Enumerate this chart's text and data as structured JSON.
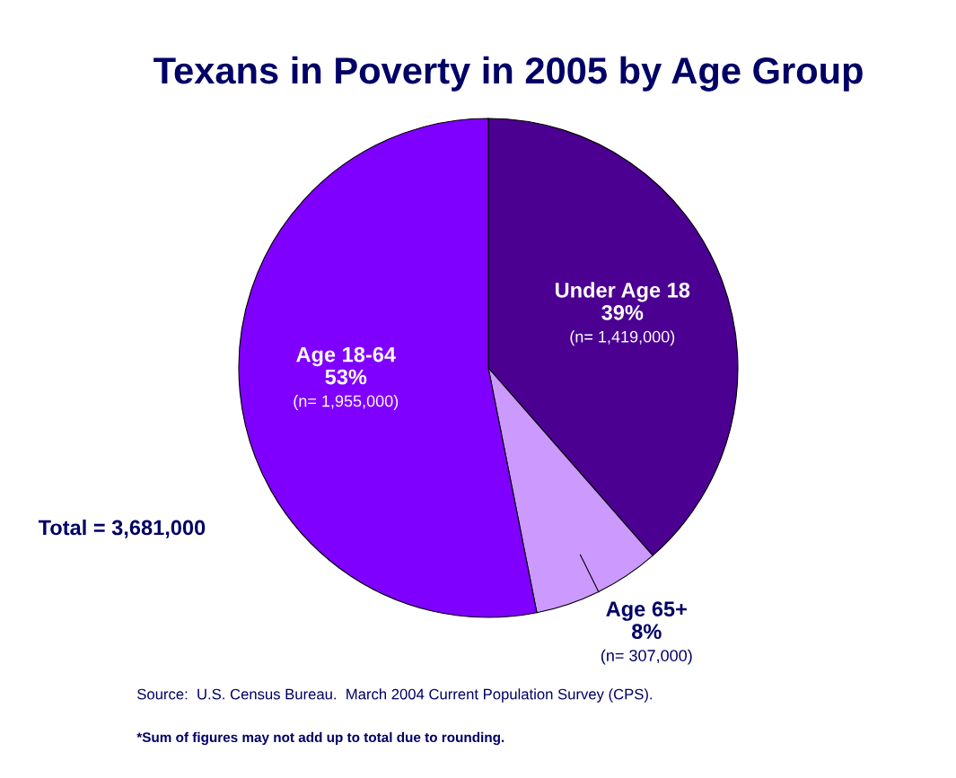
{
  "chart_data": {
    "type": "pie",
    "title": "Texans in Poverty in 2005 by Age Group",
    "categories": [
      "Under Age 18",
      "Age 65+",
      "Age 18-64"
    ],
    "values": [
      1419000,
      307000,
      1955000
    ],
    "value_labels": [
      "39%\n(n= 1,419,000)",
      "8%\n(n= 307,000)",
      "53%\n(n= 1,955,000)"
    ],
    "colors": [
      "#4b0092",
      "#cc99ff",
      "#8000ff"
    ],
    "annotations": [
      "Total = 3,681,000",
      "Source:  U.S. Census Bureau.  March 2004 Current Population Survey (CPS).",
      "*Sum of figures may not add up to total due to rounding."
    ],
    "legend": false
  }
}
